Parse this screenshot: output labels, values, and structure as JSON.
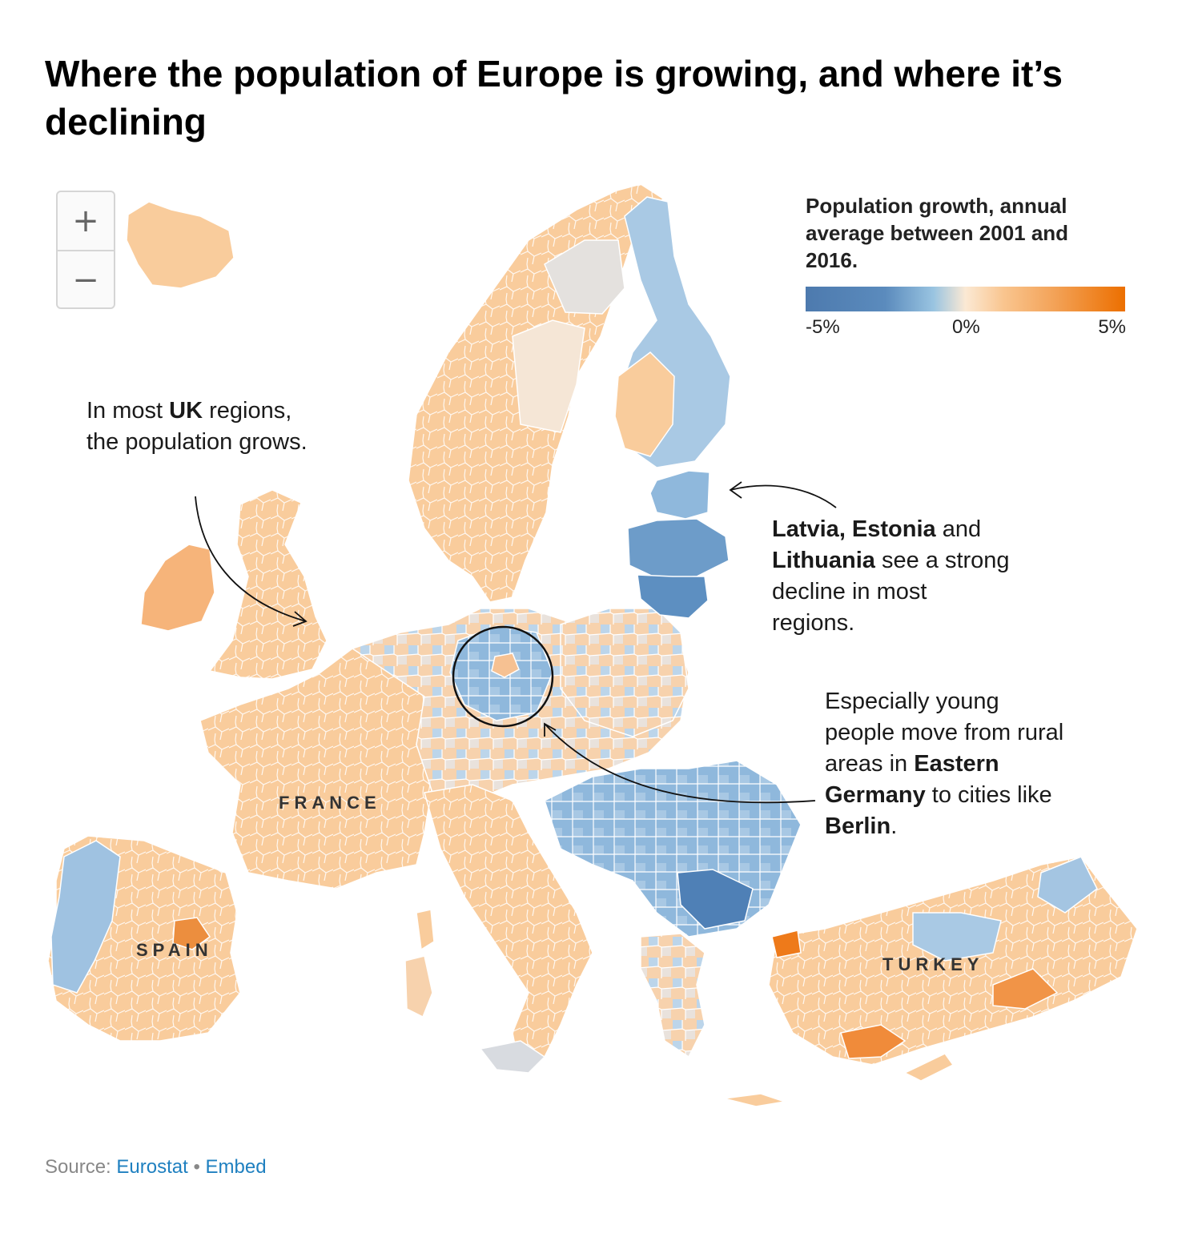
{
  "title": "Where the population of Europe is growing, and where it’s declining",
  "zoom": {
    "in_label": "+",
    "out_label": "−"
  },
  "legend": {
    "title": "Population growth, annual average between 2001 and 2016.",
    "min_label": "-5%",
    "mid_label": "0%",
    "max_label": "5%",
    "scale_min": -5,
    "scale_max": 5,
    "colors": {
      "strong_decline": "#4d7aae",
      "decline": "#99c4e1",
      "neutral": "#e3e3e3",
      "growth": "#f9c58f",
      "strong_growth": "#ec6f00"
    }
  },
  "annotations": {
    "uk": {
      "pre": "In most ",
      "bold": "UK",
      "post": " regions, the population grows."
    },
    "baltics": {
      "bold1": "Latvia, Estonia",
      "mid": " and ",
      "bold2": "Lithuania",
      "post": " see a strong decline in most regions."
    },
    "germany": {
      "pre": "Especially young people move from rural areas in ",
      "bold1": "Eastern Germany",
      "mid": " to cities like ",
      "bold2": "Berlin",
      "post": "."
    }
  },
  "labels": {
    "france": "FRANCE",
    "spain": "SPAIN",
    "turkey": "TURKEY"
  },
  "source": {
    "prefix": "Source: ",
    "link1": "Eurostat",
    "separator": " • ",
    "link2": "Embed"
  }
}
